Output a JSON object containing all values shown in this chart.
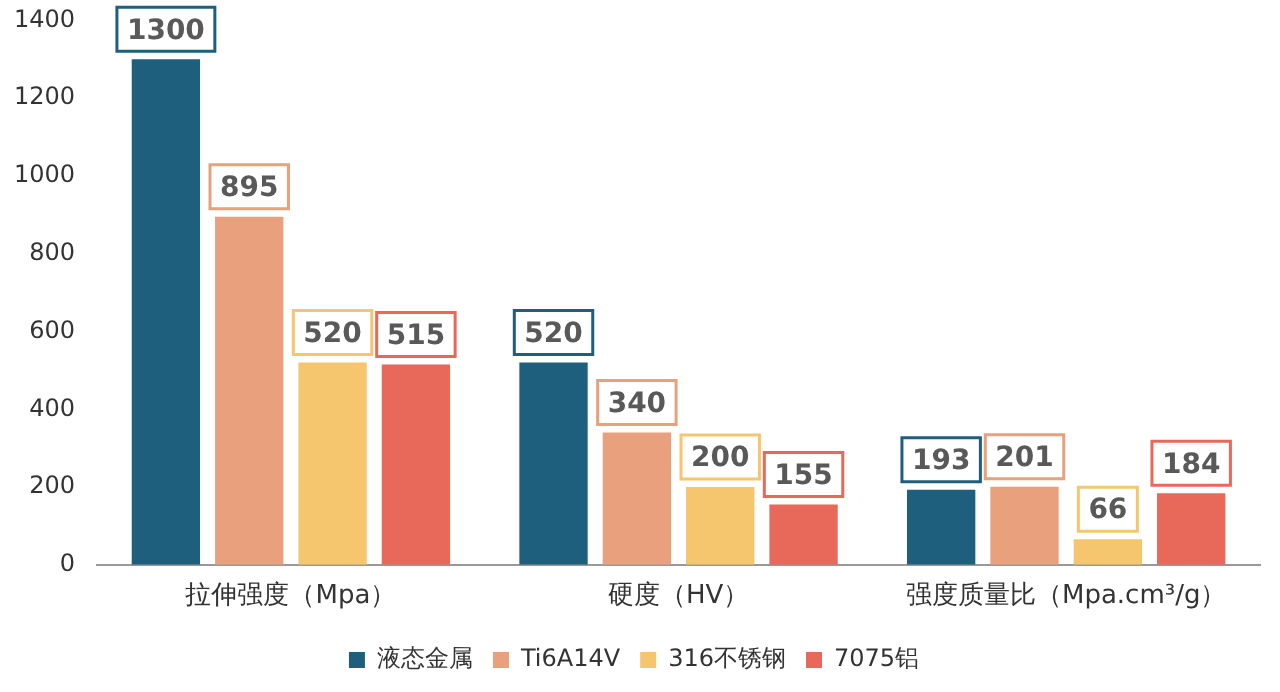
{
  "chart_data": {
    "type": "bar",
    "categories": [
      "拉伸强度（Mpa）",
      "硬度（HV）",
      "强度质量比（Mpa.cm³/g）"
    ],
    "series": [
      {
        "name": "液态金属",
        "color": "#1f5f7e",
        "values": [
          1300,
          520,
          193
        ]
      },
      {
        "name": "Ti6A14V",
        "color": "#e9a07c",
        "values": [
          895,
          340,
          201
        ]
      },
      {
        "name": "316不锈钢",
        "color": "#f6c66f",
        "values": [
          520,
          200,
          66
        ]
      },
      {
        "name": "7075铝",
        "color": "#e8685a",
        "values": [
          515,
          155,
          184
        ]
      }
    ],
    "ylim": [
      0,
      1400
    ],
    "yticks": [
      0,
      200,
      400,
      600,
      800,
      1000,
      1200,
      1400
    ],
    "grid": false,
    "legend": "bottom",
    "data_labels": true
  }
}
